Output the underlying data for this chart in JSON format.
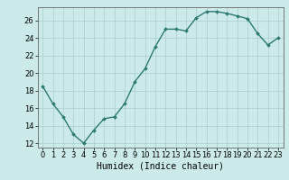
{
  "x": [
    0,
    1,
    2,
    3,
    4,
    5,
    6,
    7,
    8,
    9,
    10,
    11,
    12,
    13,
    14,
    15,
    16,
    17,
    18,
    19,
    20,
    21,
    22,
    23
  ],
  "y": [
    18.5,
    16.5,
    15.0,
    13.0,
    12.0,
    13.5,
    14.8,
    15.0,
    16.5,
    19.0,
    20.5,
    23.0,
    25.0,
    25.0,
    24.8,
    26.3,
    27.0,
    27.0,
    26.8,
    26.5,
    26.2,
    24.5,
    23.2,
    24.0
  ],
  "line_color": "#2d7a6e",
  "marker": "D",
  "marker_size": 2,
  "line_width": 1.0,
  "bg_color": "#cceaea",
  "grid_color": "#aacccc",
  "xlabel": "Humidex (Indice chaleur)",
  "xlabel_fontsize": 7,
  "tick_fontsize": 6,
  "xlim": [
    -0.5,
    23.5
  ],
  "ylim": [
    11.5,
    27.5
  ],
  "yticks": [
    12,
    14,
    16,
    18,
    20,
    22,
    24,
    26
  ],
  "xticks": [
    0,
    1,
    2,
    3,
    4,
    5,
    6,
    7,
    8,
    9,
    10,
    11,
    12,
    13,
    14,
    15,
    16,
    17,
    18,
    19,
    20,
    21,
    22,
    23
  ]
}
